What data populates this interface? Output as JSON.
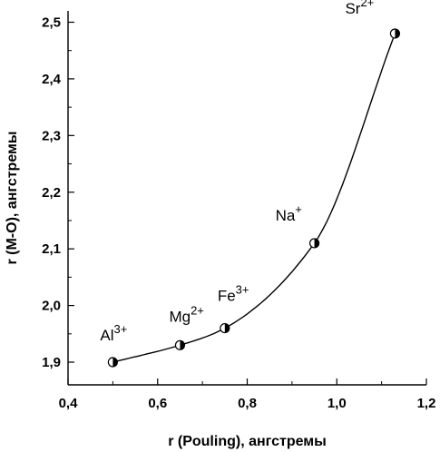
{
  "chart_data": {
    "type": "scatter",
    "title": "",
    "xlabel": "r (Pouling), ангстремы",
    "ylabel": "r (M-O), ангстремы",
    "xlim": [
      0.4,
      1.2
    ],
    "ylim": [
      1.86,
      2.52
    ],
    "x_ticks": [
      "0,4",
      "0,6",
      "0,8",
      "1,0",
      "1,2"
    ],
    "y_ticks": [
      "1,9",
      "2,0",
      "2,1",
      "2,2",
      "2,3",
      "2,4",
      "2,5"
    ],
    "grid": false,
    "points": [
      {
        "x": 0.5,
        "y": 1.9,
        "ion": "Al",
        "charge": "3+"
      },
      {
        "x": 0.65,
        "y": 1.93,
        "ion": "Mg",
        "charge": "2+"
      },
      {
        "x": 0.75,
        "y": 1.96,
        "ion": "Fe",
        "charge": "3+"
      },
      {
        "x": 0.95,
        "y": 2.11,
        "ion": "Na",
        "charge": "+"
      },
      {
        "x": 1.13,
        "y": 2.48,
        "ion": "Sr",
        "charge": "2+"
      }
    ],
    "fit_curve": true
  }
}
